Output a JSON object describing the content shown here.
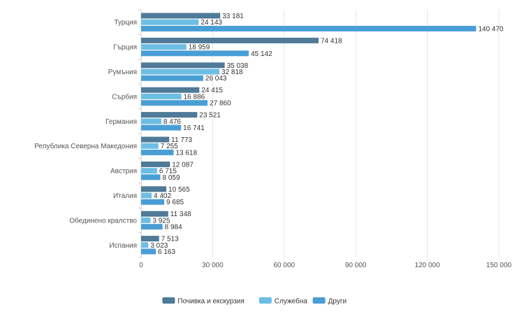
{
  "chart_data": {
    "type": "bar",
    "orientation": "horizontal",
    "categories": [
      "Турция",
      "Гърция",
      "Румъния",
      "Сърбия",
      "Германия",
      "Република Северна Македония",
      "Австрия",
      "Италия",
      "Обединено кралство",
      "Испания"
    ],
    "series": [
      {
        "name": "Почивка и екскурзия",
        "color": "#4f7a98",
        "values": [
          33181,
          74418,
          35038,
          24415,
          23521,
          11773,
          12087,
          10565,
          11348,
          7513
        ]
      },
      {
        "name": "Служебна",
        "color": "#6dbde4",
        "values": [
          24143,
          18959,
          32818,
          16886,
          8476,
          7255,
          6715,
          4402,
          3925,
          3023
        ]
      },
      {
        "name": "Други",
        "color": "#4a9ed6",
        "values": [
          140470,
          45142,
          26043,
          27860,
          16741,
          13618,
          8059,
          9685,
          8984,
          6163
        ]
      }
    ],
    "data_labels": [
      [
        "33 181",
        "74 418",
        "35 038",
        "24 415",
        "23 521",
        "11 773",
        "12 087",
        "10 565",
        "11 348",
        "7 513"
      ],
      [
        "24 143",
        "18 959",
        "32 818",
        "16 886",
        "8 476",
        "7 255",
        "6 715",
        "4 402",
        "3 925",
        "3 023"
      ],
      [
        "140 470",
        "45 142",
        "26 043",
        "27 860",
        "16 741",
        "13 618",
        "8 059",
        "9 685",
        "8 984",
        "6 163"
      ]
    ],
    "x_ticks": [
      0,
      30000,
      60000,
      90000,
      120000,
      150000
    ],
    "x_tick_labels": [
      "0",
      "30 000",
      "60 000",
      "90 000",
      "120 000",
      "150 000"
    ],
    "xlim": [
      0,
      150000
    ],
    "title": "",
    "xlabel": "",
    "ylabel": "",
    "grid": true,
    "legend_position": "bottom-center"
  }
}
